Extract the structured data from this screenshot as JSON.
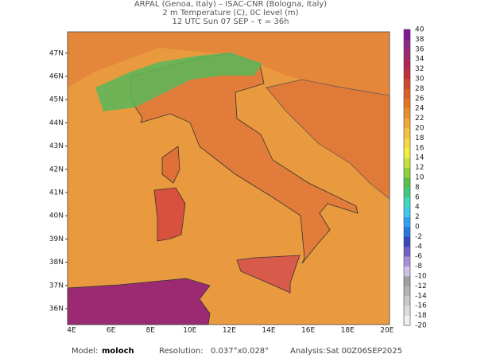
{
  "header": {
    "lines": [
      "ARPAL (Genoa, Italy)  –  ISAC-CNR (Bologna, Italy)",
      "2 m Temperature (C), 0C level (m)",
      "12 UTC Sun 07 SEP  –  τ = 36h"
    ]
  },
  "map": {
    "lat_labels": [
      "36N",
      "37N",
      "38N",
      "39N",
      "40N",
      "41N",
      "42N",
      "43N",
      "44N",
      "45N",
      "46N",
      "47N"
    ],
    "lon_labels": [
      "4E",
      "6E",
      "8E",
      "10E",
      "12E",
      "14E",
      "16E",
      "18E",
      "20E"
    ]
  },
  "colorbar": {
    "ticks": [
      -20,
      -18,
      -16,
      -14,
      -12,
      -10,
      -8,
      -6,
      -4,
      -2,
      0,
      2,
      4,
      6,
      8,
      10,
      12,
      14,
      16,
      18,
      20,
      22,
      24,
      26,
      28,
      30,
      32,
      34,
      36,
      38,
      40
    ]
  },
  "footer": {
    "model_label": "Model:",
    "model": "moloch",
    "resolution_label": "Resolution:",
    "resolution": "0.037°x0.028°",
    "analysis_label": "Analysis:",
    "analysis": "Sat 00Z06SEP2025"
  }
}
